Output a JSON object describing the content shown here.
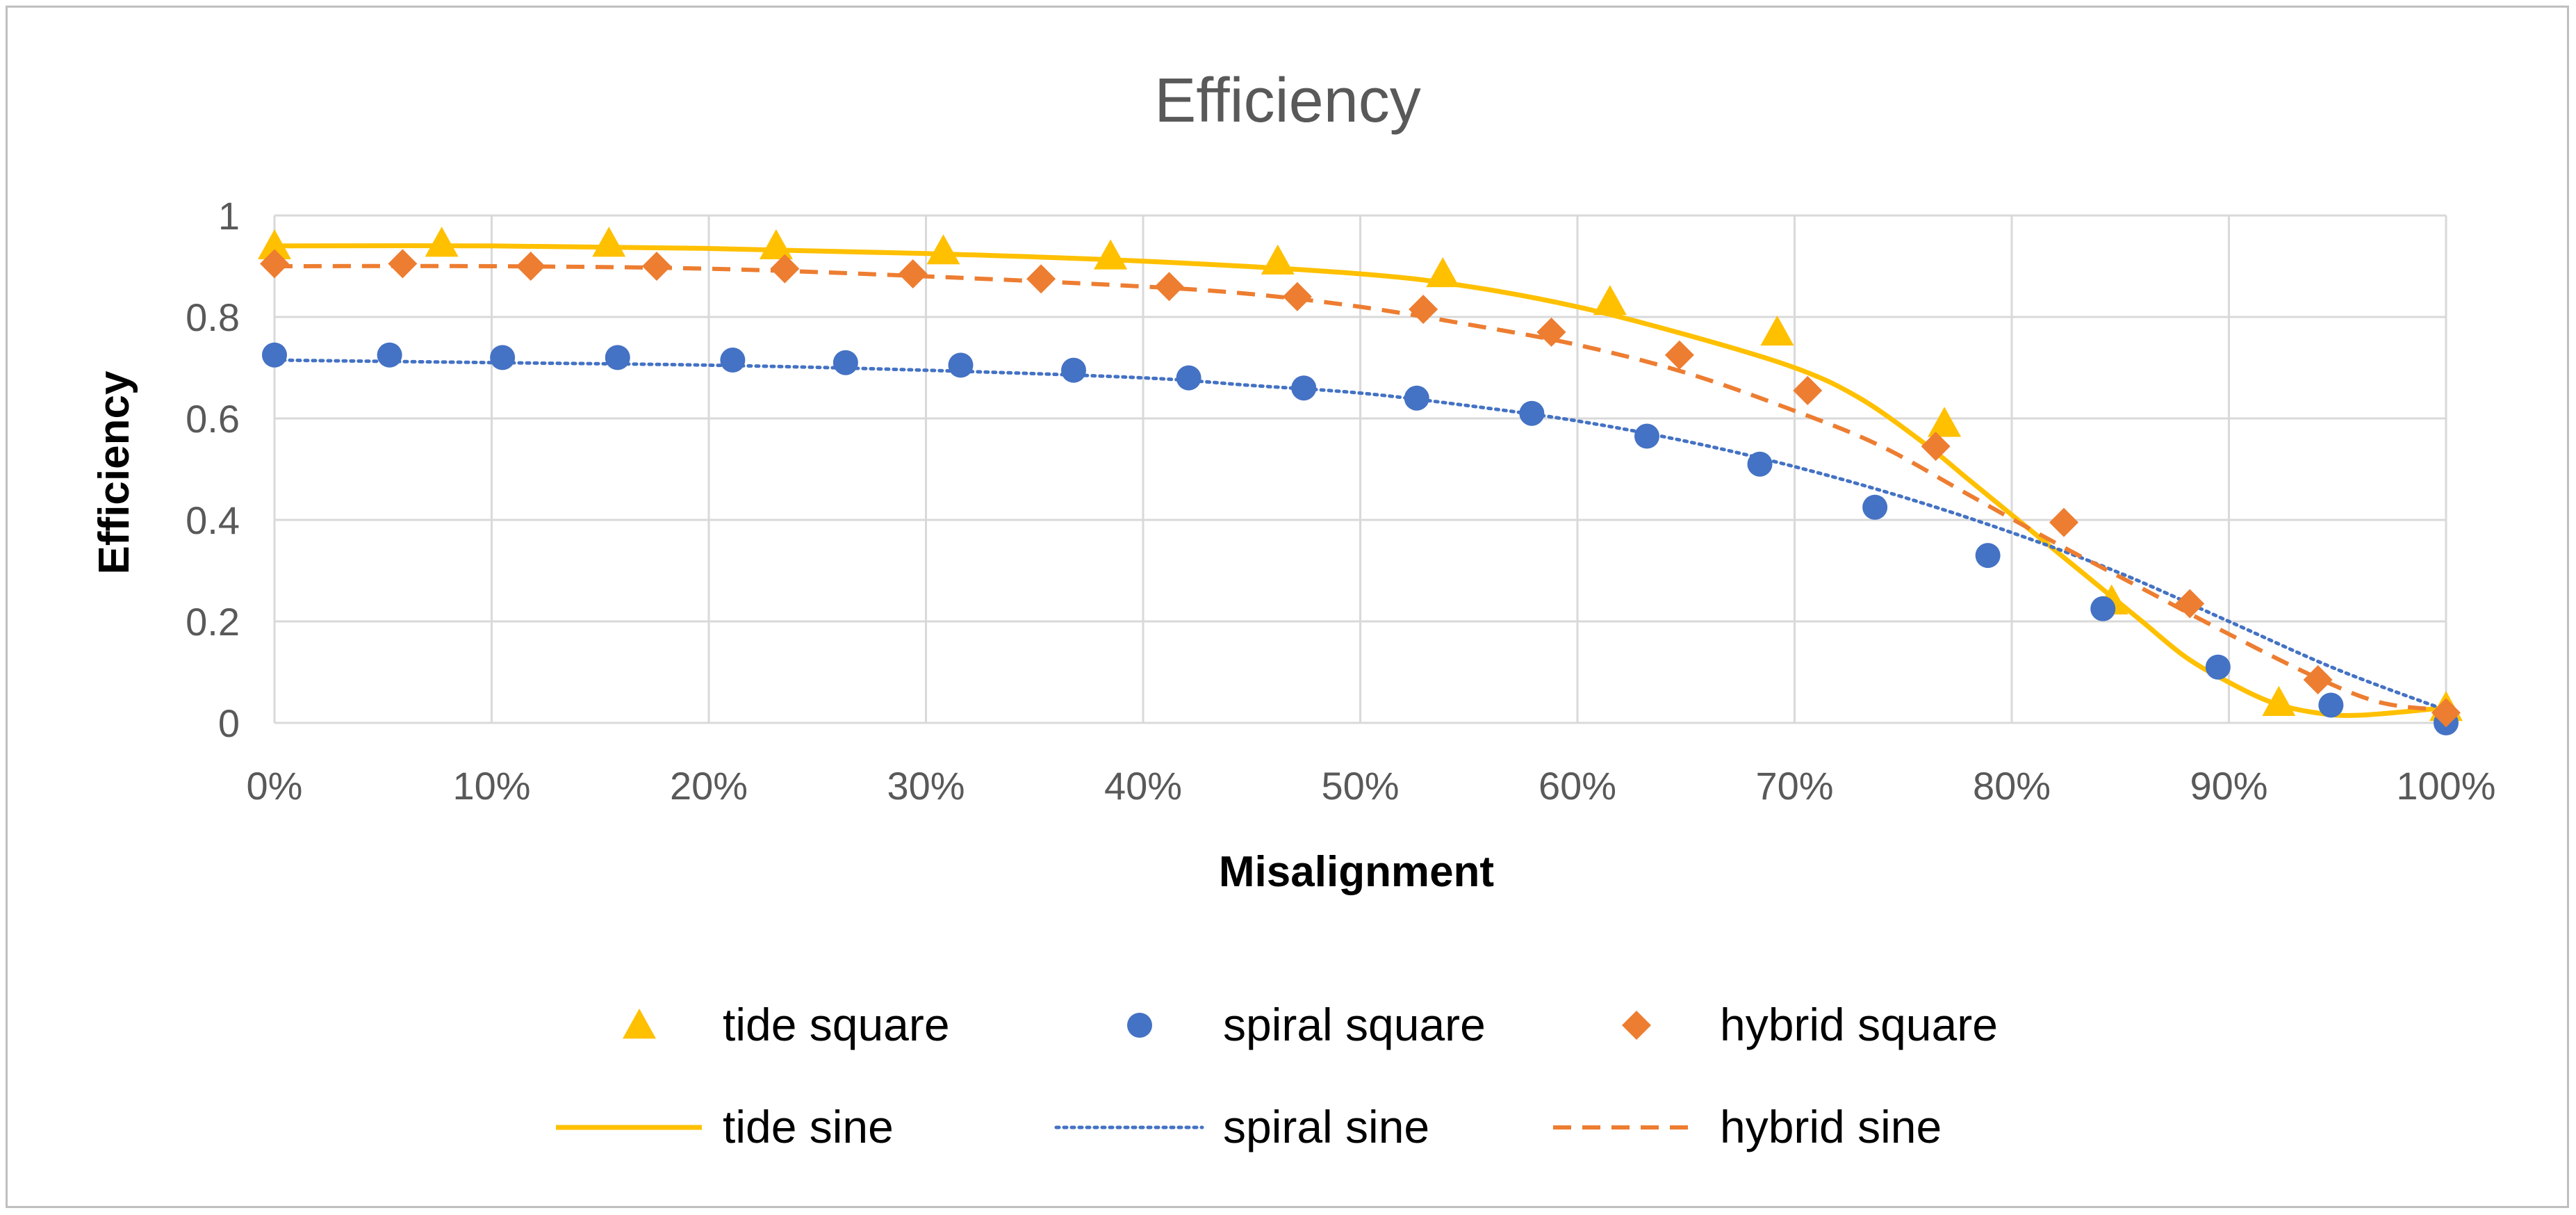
{
  "chart_data": {
    "type": "scatter",
    "title": "Efficiency",
    "xlabel": "Misalignment",
    "ylabel": "Efficiency",
    "xlim": [
      0,
      100
    ],
    "ylim": [
      0,
      1
    ],
    "x_ticks": [
      0,
      10,
      20,
      30,
      40,
      50,
      60,
      70,
      80,
      90,
      100
    ],
    "x_tick_labels": [
      "0%",
      "10%",
      "20%",
      "30%",
      "40%",
      "50%",
      "60%",
      "70%",
      "80%",
      "90%",
      "100%"
    ],
    "y_ticks": [
      0,
      0.2,
      0.4,
      0.6,
      0.8,
      1
    ],
    "y_tick_labels": [
      "0",
      "0.2",
      "0.4",
      "0.6",
      "0.8",
      "1"
    ],
    "grid": true,
    "legend_position": "bottom",
    "series": [
      {
        "name": "tide square",
        "kind": "markers",
        "marker": "triangle",
        "color": "#ffc000",
        "points": [
          [
            0,
            0.94
          ],
          [
            7.7,
            0.945
          ],
          [
            15.4,
            0.945
          ],
          [
            23.1,
            0.94
          ],
          [
            30.8,
            0.93
          ],
          [
            38.5,
            0.92
          ],
          [
            46.2,
            0.91
          ],
          [
            53.8,
            0.885
          ],
          [
            61.5,
            0.83
          ],
          [
            69.2,
            0.77
          ],
          [
            76.9,
            0.59
          ],
          [
            84.6,
            0.24
          ],
          [
            92.3,
            0.04
          ],
          [
            100,
            0.03
          ]
        ]
      },
      {
        "name": "spiral square",
        "kind": "markers",
        "marker": "circle",
        "color": "#4472c4",
        "points": [
          [
            0,
            0.725
          ],
          [
            5.3,
            0.725
          ],
          [
            10.5,
            0.72
          ],
          [
            15.8,
            0.72
          ],
          [
            21.1,
            0.715
          ],
          [
            26.3,
            0.71
          ],
          [
            31.6,
            0.705
          ],
          [
            36.8,
            0.695
          ],
          [
            42.1,
            0.68
          ],
          [
            47.4,
            0.66
          ],
          [
            52.6,
            0.64
          ],
          [
            57.9,
            0.61
          ],
          [
            63.2,
            0.565
          ],
          [
            68.4,
            0.51
          ],
          [
            73.7,
            0.425
          ],
          [
            78.9,
            0.33
          ],
          [
            84.2,
            0.225
          ],
          [
            89.5,
            0.11
          ],
          [
            94.7,
            0.035
          ],
          [
            100,
            0
          ]
        ]
      },
      {
        "name": "hybrid square",
        "kind": "markers",
        "marker": "diamond",
        "color": "#ed7d31",
        "points": [
          [
            0,
            0.905
          ],
          [
            5.9,
            0.905
          ],
          [
            11.8,
            0.9
          ],
          [
            17.6,
            0.9
          ],
          [
            23.5,
            0.895
          ],
          [
            29.4,
            0.885
          ],
          [
            35.3,
            0.875
          ],
          [
            41.2,
            0.86
          ],
          [
            47.1,
            0.84
          ],
          [
            52.9,
            0.815
          ],
          [
            58.8,
            0.77
          ],
          [
            64.7,
            0.725
          ],
          [
            70.6,
            0.655
          ],
          [
            76.5,
            0.545
          ],
          [
            82.4,
            0.395
          ],
          [
            88.2,
            0.235
          ],
          [
            94.1,
            0.085
          ],
          [
            100,
            0.02
          ]
        ]
      },
      {
        "name": "tide sine",
        "kind": "line",
        "dash": "solid",
        "color": "#ffc000",
        "points": [
          [
            0,
            0.94
          ],
          [
            10,
            0.94
          ],
          [
            20,
            0.935
          ],
          [
            30,
            0.925
          ],
          [
            40,
            0.91
          ],
          [
            50,
            0.885
          ],
          [
            55,
            0.86
          ],
          [
            60,
            0.82
          ],
          [
            65,
            0.765
          ],
          [
            70,
            0.7
          ],
          [
            73,
            0.64
          ],
          [
            76,
            0.55
          ],
          [
            78,
            0.48
          ],
          [
            80,
            0.41
          ],
          [
            82,
            0.34
          ],
          [
            84,
            0.27
          ],
          [
            86,
            0.2
          ],
          [
            88,
            0.13
          ],
          [
            90,
            0.08
          ],
          [
            92,
            0.04
          ],
          [
            94,
            0.02
          ],
          [
            96,
            0.015
          ],
          [
            100,
            0.03
          ]
        ]
      },
      {
        "name": "spiral sine",
        "kind": "line",
        "dash": "dotted",
        "color": "#4472c4",
        "points": [
          [
            0,
            0.715
          ],
          [
            10,
            0.71
          ],
          [
            20,
            0.705
          ],
          [
            30,
            0.695
          ],
          [
            40,
            0.68
          ],
          [
            45,
            0.665
          ],
          [
            50,
            0.65
          ],
          [
            55,
            0.625
          ],
          [
            60,
            0.595
          ],
          [
            65,
            0.555
          ],
          [
            70,
            0.505
          ],
          [
            75,
            0.445
          ],
          [
            80,
            0.375
          ],
          [
            85,
            0.295
          ],
          [
            90,
            0.2
          ],
          [
            95,
            0.105
          ],
          [
            100,
            0.025
          ]
        ]
      },
      {
        "name": "hybrid sine",
        "kind": "line",
        "dash": "dashed",
        "color": "#ed7d31",
        "points": [
          [
            0,
            0.9
          ],
          [
            10,
            0.9
          ],
          [
            20,
            0.895
          ],
          [
            30,
            0.88
          ],
          [
            40,
            0.86
          ],
          [
            45,
            0.845
          ],
          [
            50,
            0.82
          ],
          [
            55,
            0.785
          ],
          [
            60,
            0.745
          ],
          [
            65,
            0.69
          ],
          [
            70,
            0.615
          ],
          [
            74,
            0.545
          ],
          [
            78,
            0.45
          ],
          [
            82,
            0.355
          ],
          [
            86,
            0.265
          ],
          [
            90,
            0.175
          ],
          [
            94,
            0.09
          ],
          [
            97,
            0.04
          ],
          [
            100,
            0.025
          ]
        ]
      }
    ]
  }
}
